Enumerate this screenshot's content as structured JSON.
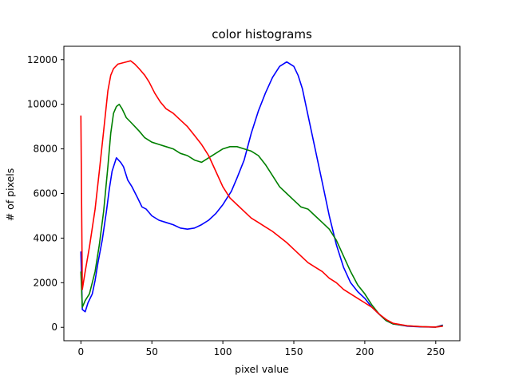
{
  "chart_data": {
    "type": "line",
    "title": "color histograms",
    "xlabel": "pixel value",
    "ylabel": "# of pixels",
    "xlim": [
      -12,
      267
    ],
    "ylim": [
      -600,
      12600
    ],
    "xticks": [
      0,
      50,
      100,
      150,
      200,
      250
    ],
    "yticks": [
      0,
      2000,
      4000,
      6000,
      8000,
      10000,
      12000
    ],
    "grid": false,
    "legend": "none",
    "series": [
      {
        "color": "#0000ff",
        "points": [
          [
            0,
            3400
          ],
          [
            1,
            800
          ],
          [
            3,
            700
          ],
          [
            5,
            1100
          ],
          [
            8,
            1500
          ],
          [
            10,
            2100
          ],
          [
            12,
            2900
          ],
          [
            15,
            3900
          ],
          [
            18,
            5200
          ],
          [
            20,
            6200
          ],
          [
            22,
            7000
          ],
          [
            25,
            7600
          ],
          [
            28,
            7400
          ],
          [
            30,
            7200
          ],
          [
            33,
            6600
          ],
          [
            36,
            6300
          ],
          [
            40,
            5800
          ],
          [
            43,
            5400
          ],
          [
            46,
            5300
          ],
          [
            50,
            5000
          ],
          [
            55,
            4800
          ],
          [
            60,
            4700
          ],
          [
            65,
            4600
          ],
          [
            70,
            4450
          ],
          [
            75,
            4400
          ],
          [
            80,
            4450
          ],
          [
            85,
            4600
          ],
          [
            90,
            4800
          ],
          [
            95,
            5100
          ],
          [
            100,
            5500
          ],
          [
            103,
            5800
          ],
          [
            106,
            6100
          ],
          [
            110,
            6700
          ],
          [
            115,
            7500
          ],
          [
            120,
            8700
          ],
          [
            125,
            9700
          ],
          [
            130,
            10500
          ],
          [
            135,
            11200
          ],
          [
            140,
            11700
          ],
          [
            145,
            11900
          ],
          [
            150,
            11700
          ],
          [
            153,
            11300
          ],
          [
            156,
            10700
          ],
          [
            160,
            9500
          ],
          [
            165,
            8000
          ],
          [
            170,
            6500
          ],
          [
            175,
            5000
          ],
          [
            180,
            3700
          ],
          [
            185,
            2700
          ],
          [
            190,
            2000
          ],
          [
            195,
            1600
          ],
          [
            200,
            1300
          ],
          [
            205,
            900
          ],
          [
            210,
            600
          ],
          [
            215,
            300
          ],
          [
            220,
            150
          ],
          [
            230,
            50
          ],
          [
            240,
            20
          ],
          [
            250,
            10
          ],
          [
            255,
            100
          ]
        ]
      },
      {
        "color": "#008000",
        "points": [
          [
            0,
            2500
          ],
          [
            1,
            900
          ],
          [
            3,
            1200
          ],
          [
            6,
            1500
          ],
          [
            10,
            2500
          ],
          [
            13,
            3700
          ],
          [
            16,
            5200
          ],
          [
            19,
            7200
          ],
          [
            21,
            8700
          ],
          [
            23,
            9600
          ],
          [
            25,
            9900
          ],
          [
            27,
            10000
          ],
          [
            29,
            9800
          ],
          [
            32,
            9400
          ],
          [
            35,
            9200
          ],
          [
            38,
            9000
          ],
          [
            41,
            8800
          ],
          [
            45,
            8500
          ],
          [
            50,
            8300
          ],
          [
            55,
            8200
          ],
          [
            60,
            8100
          ],
          [
            65,
            8000
          ],
          [
            70,
            7800
          ],
          [
            75,
            7700
          ],
          [
            80,
            7500
          ],
          [
            85,
            7400
          ],
          [
            90,
            7600
          ],
          [
            95,
            7800
          ],
          [
            100,
            8000
          ],
          [
            105,
            8100
          ],
          [
            110,
            8100
          ],
          [
            115,
            8000
          ],
          [
            120,
            7900
          ],
          [
            125,
            7700
          ],
          [
            130,
            7300
          ],
          [
            135,
            6800
          ],
          [
            140,
            6300
          ],
          [
            145,
            6000
          ],
          [
            150,
            5700
          ],
          [
            155,
            5400
          ],
          [
            160,
            5300
          ],
          [
            165,
            5000
          ],
          [
            170,
            4700
          ],
          [
            175,
            4400
          ],
          [
            180,
            3900
          ],
          [
            185,
            3200
          ],
          [
            190,
            2500
          ],
          [
            195,
            1900
          ],
          [
            200,
            1500
          ],
          [
            205,
            1000
          ],
          [
            210,
            600
          ],
          [
            215,
            300
          ],
          [
            220,
            150
          ],
          [
            230,
            70
          ],
          [
            240,
            30
          ],
          [
            250,
            10
          ],
          [
            255,
            80
          ]
        ]
      },
      {
        "color": "#ff0000",
        "points": [
          [
            0,
            9500
          ],
          [
            1,
            1700
          ],
          [
            3,
            2500
          ],
          [
            6,
            3600
          ],
          [
            10,
            5300
          ],
          [
            13,
            7000
          ],
          [
            16,
            8800
          ],
          [
            19,
            10600
          ],
          [
            21,
            11300
          ],
          [
            23,
            11600
          ],
          [
            26,
            11800
          ],
          [
            29,
            11850
          ],
          [
            32,
            11900
          ],
          [
            35,
            11950
          ],
          [
            38,
            11800
          ],
          [
            41,
            11600
          ],
          [
            45,
            11300
          ],
          [
            48,
            11000
          ],
          [
            52,
            10500
          ],
          [
            56,
            10100
          ],
          [
            60,
            9800
          ],
          [
            65,
            9600
          ],
          [
            70,
            9300
          ],
          [
            75,
            9000
          ],
          [
            80,
            8600
          ],
          [
            85,
            8200
          ],
          [
            90,
            7700
          ],
          [
            95,
            7000
          ],
          [
            100,
            6300
          ],
          [
            105,
            5800
          ],
          [
            110,
            5500
          ],
          [
            115,
            5200
          ],
          [
            120,
            4900
          ],
          [
            125,
            4700
          ],
          [
            130,
            4500
          ],
          [
            135,
            4300
          ],
          [
            140,
            4050
          ],
          [
            145,
            3800
          ],
          [
            150,
            3500
          ],
          [
            155,
            3200
          ],
          [
            160,
            2900
          ],
          [
            165,
            2700
          ],
          [
            170,
            2500
          ],
          [
            175,
            2200
          ],
          [
            180,
            2000
          ],
          [
            185,
            1700
          ],
          [
            190,
            1500
          ],
          [
            195,
            1300
          ],
          [
            200,
            1100
          ],
          [
            205,
            900
          ],
          [
            210,
            600
          ],
          [
            215,
            350
          ],
          [
            220,
            180
          ],
          [
            230,
            70
          ],
          [
            240,
            30
          ],
          [
            250,
            10
          ],
          [
            255,
            50
          ]
        ]
      }
    ]
  }
}
